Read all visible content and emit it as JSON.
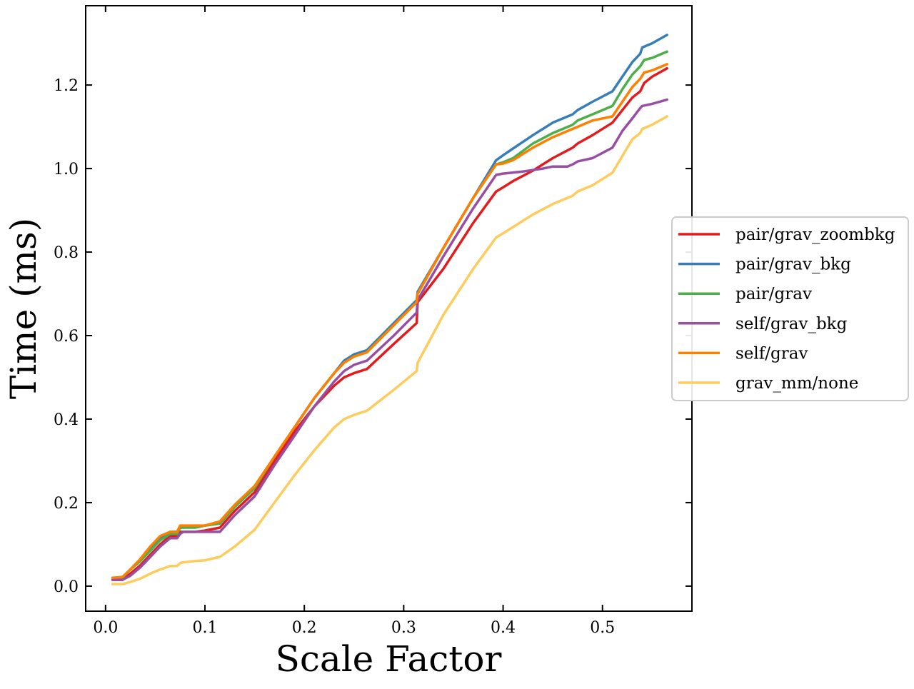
{
  "chart_data": {
    "type": "line",
    "title": "",
    "xlabel": "Scale Factor",
    "ylabel": "Time (ms)",
    "xlim": [
      -0.02,
      0.59
    ],
    "ylim": [
      -0.06,
      1.39
    ],
    "xticks": [
      0.0,
      0.1,
      0.2,
      0.3,
      0.4,
      0.5
    ],
    "xtick_labels": [
      "0.0",
      "0.1",
      "0.2",
      "0.3",
      "0.4",
      "0.5"
    ],
    "yticks": [
      0.0,
      0.2,
      0.4,
      0.6,
      0.8,
      1.0,
      1.2
    ],
    "ytick_labels": [
      "0.0",
      "0.2",
      "0.4",
      "0.6",
      "0.8",
      "1.0",
      "1.2"
    ],
    "grid": false,
    "legend_position": "right",
    "series": [
      {
        "name": "pair/grav_zoombkg",
        "color": "#e41a1c",
        "x": [
          0.007,
          0.017,
          0.025,
          0.035,
          0.045,
          0.055,
          0.065,
          0.072,
          0.075,
          0.078,
          0.09,
          0.1,
          0.115,
          0.13,
          0.15,
          0.17,
          0.19,
          0.21,
          0.23,
          0.24,
          0.25,
          0.263,
          0.29,
          0.313,
          0.314,
          0.34,
          0.37,
          0.393,
          0.4,
          0.41,
          0.43,
          0.45,
          0.47,
          0.475,
          0.49,
          0.51,
          0.52,
          0.53,
          0.538,
          0.542,
          0.55,
          0.565
        ],
        "y": [
          0.015,
          0.015,
          0.03,
          0.05,
          0.075,
          0.1,
          0.12,
          0.12,
          0.13,
          0.13,
          0.13,
          0.133,
          0.14,
          0.18,
          0.225,
          0.3,
          0.37,
          0.43,
          0.48,
          0.5,
          0.51,
          0.52,
          0.58,
          0.63,
          0.68,
          0.76,
          0.87,
          0.945,
          0.955,
          0.97,
          0.995,
          1.025,
          1.05,
          1.06,
          1.08,
          1.11,
          1.14,
          1.17,
          1.185,
          1.205,
          1.22,
          1.24
        ]
      },
      {
        "name": "pair/grav_bkg",
        "color": "#377eb8",
        "x": [
          0.007,
          0.017,
          0.025,
          0.035,
          0.045,
          0.055,
          0.065,
          0.072,
          0.075,
          0.078,
          0.09,
          0.1,
          0.115,
          0.13,
          0.15,
          0.17,
          0.19,
          0.21,
          0.23,
          0.24,
          0.25,
          0.263,
          0.29,
          0.313,
          0.314,
          0.34,
          0.37,
          0.393,
          0.4,
          0.41,
          0.43,
          0.45,
          0.47,
          0.475,
          0.49,
          0.51,
          0.52,
          0.53,
          0.538,
          0.54,
          0.55,
          0.565
        ],
        "y": [
          0.02,
          0.02,
          0.04,
          0.06,
          0.09,
          0.115,
          0.13,
          0.13,
          0.14,
          0.14,
          0.142,
          0.145,
          0.15,
          0.19,
          0.235,
          0.31,
          0.38,
          0.45,
          0.51,
          0.54,
          0.555,
          0.565,
          0.63,
          0.685,
          0.705,
          0.81,
          0.93,
          1.02,
          1.032,
          1.048,
          1.08,
          1.11,
          1.13,
          1.14,
          1.16,
          1.185,
          1.22,
          1.255,
          1.275,
          1.29,
          1.3,
          1.32
        ]
      },
      {
        "name": "pair/grav",
        "color": "#4daf4a",
        "x": [
          0.007,
          0.017,
          0.025,
          0.035,
          0.045,
          0.055,
          0.065,
          0.072,
          0.075,
          0.078,
          0.09,
          0.1,
          0.115,
          0.13,
          0.15,
          0.17,
          0.19,
          0.21,
          0.23,
          0.24,
          0.25,
          0.263,
          0.29,
          0.313,
          0.314,
          0.34,
          0.37,
          0.393,
          0.4,
          0.41,
          0.43,
          0.45,
          0.47,
          0.475,
          0.49,
          0.51,
          0.52,
          0.53,
          0.538,
          0.542,
          0.55,
          0.565
        ],
        "y": [
          0.02,
          0.02,
          0.04,
          0.06,
          0.085,
          0.11,
          0.125,
          0.125,
          0.14,
          0.14,
          0.14,
          0.145,
          0.15,
          0.19,
          0.235,
          0.31,
          0.38,
          0.45,
          0.51,
          0.535,
          0.55,
          0.56,
          0.625,
          0.68,
          0.7,
          0.81,
          0.93,
          1.01,
          1.015,
          1.025,
          1.06,
          1.085,
          1.105,
          1.115,
          1.13,
          1.15,
          1.19,
          1.225,
          1.245,
          1.26,
          1.265,
          1.28
        ]
      },
      {
        "name": "self/grav_bkg",
        "color": "#984ea3",
        "x": [
          0.007,
          0.017,
          0.025,
          0.035,
          0.045,
          0.055,
          0.065,
          0.072,
          0.075,
          0.078,
          0.09,
          0.1,
          0.115,
          0.13,
          0.15,
          0.17,
          0.19,
          0.21,
          0.23,
          0.24,
          0.25,
          0.263,
          0.29,
          0.313,
          0.314,
          0.34,
          0.37,
          0.393,
          0.4,
          0.42,
          0.44,
          0.45,
          0.465,
          0.47,
          0.475,
          0.49,
          0.51,
          0.52,
          0.53,
          0.538,
          0.54,
          0.55,
          0.565
        ],
        "y": [
          0.015,
          0.015,
          0.025,
          0.045,
          0.07,
          0.095,
          0.115,
          0.115,
          0.125,
          0.13,
          0.13,
          0.13,
          0.13,
          0.17,
          0.215,
          0.29,
          0.36,
          0.43,
          0.49,
          0.515,
          0.53,
          0.54,
          0.6,
          0.655,
          0.685,
          0.79,
          0.905,
          0.985,
          0.988,
          0.993,
          1.0,
          1.005,
          1.005,
          1.01,
          1.017,
          1.025,
          1.05,
          1.09,
          1.12,
          1.145,
          1.15,
          1.155,
          1.165
        ]
      },
      {
        "name": "self/grav",
        "color": "#ff7f00",
        "x": [
          0.007,
          0.017,
          0.025,
          0.035,
          0.045,
          0.055,
          0.065,
          0.072,
          0.075,
          0.078,
          0.09,
          0.1,
          0.115,
          0.13,
          0.15,
          0.17,
          0.19,
          0.21,
          0.23,
          0.24,
          0.25,
          0.263,
          0.29,
          0.313,
          0.314,
          0.34,
          0.37,
          0.393,
          0.4,
          0.41,
          0.43,
          0.45,
          0.47,
          0.475,
          0.49,
          0.51,
          0.52,
          0.53,
          0.538,
          0.542,
          0.55,
          0.565
        ],
        "y": [
          0.02,
          0.022,
          0.04,
          0.065,
          0.095,
          0.12,
          0.13,
          0.13,
          0.145,
          0.145,
          0.145,
          0.145,
          0.155,
          0.195,
          0.24,
          0.31,
          0.38,
          0.45,
          0.51,
          0.535,
          0.55,
          0.56,
          0.625,
          0.68,
          0.7,
          0.81,
          0.93,
          1.01,
          1.012,
          1.02,
          1.05,
          1.075,
          1.095,
          1.1,
          1.115,
          1.125,
          1.16,
          1.195,
          1.215,
          1.23,
          1.235,
          1.25
        ]
      },
      {
        "name": "grav_mm/none",
        "color": "#fecc5c",
        "x": [
          0.007,
          0.017,
          0.025,
          0.035,
          0.045,
          0.055,
          0.065,
          0.072,
          0.075,
          0.078,
          0.09,
          0.1,
          0.115,
          0.13,
          0.15,
          0.17,
          0.19,
          0.21,
          0.23,
          0.24,
          0.25,
          0.263,
          0.29,
          0.313,
          0.314,
          0.34,
          0.37,
          0.393,
          0.4,
          0.41,
          0.43,
          0.45,
          0.47,
          0.475,
          0.49,
          0.51,
          0.52,
          0.53,
          0.538,
          0.54,
          0.55,
          0.565
        ],
        "y": [
          0.005,
          0.005,
          0.01,
          0.018,
          0.03,
          0.04,
          0.048,
          0.048,
          0.055,
          0.057,
          0.06,
          0.062,
          0.07,
          0.095,
          0.135,
          0.2,
          0.265,
          0.325,
          0.38,
          0.4,
          0.41,
          0.42,
          0.47,
          0.515,
          0.535,
          0.65,
          0.76,
          0.835,
          0.845,
          0.86,
          0.89,
          0.915,
          0.935,
          0.945,
          0.96,
          0.99,
          1.03,
          1.07,
          1.085,
          1.095,
          1.105,
          1.125
        ]
      }
    ]
  }
}
